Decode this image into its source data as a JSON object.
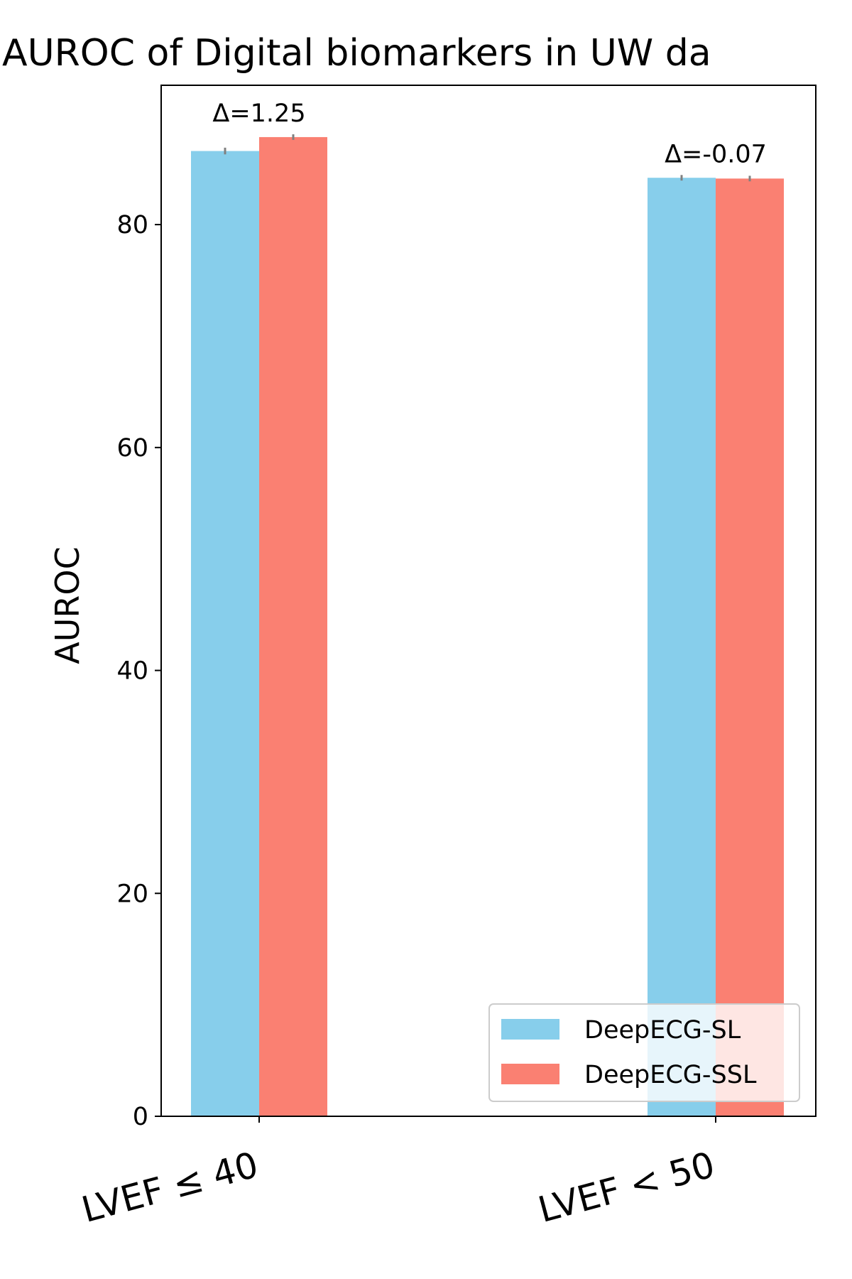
{
  "chart_data": {
    "type": "bar",
    "title": "AUROC of Digital biomarkers in UW da",
    "xlabel": "",
    "ylabel": "AUROC",
    "categories": [
      "LVEF ≤ 40",
      "LVEF < 50"
    ],
    "series": [
      {
        "name": "DeepECG-SL",
        "color": "#87CEEB",
        "values": [
          86.6,
          84.2
        ],
        "errors": [
          0.3,
          0.25
        ]
      },
      {
        "name": "DeepECG-SSL",
        "color": "#FA8072",
        "values": [
          87.85,
          84.13
        ],
        "errors": [
          0.25,
          0.25
        ]
      }
    ],
    "annotations": [
      "Δ=1.25",
      "Δ=-0.07"
    ],
    "ylim": [
      0,
      92.5
    ],
    "yticks": [
      0,
      20,
      40,
      60,
      80
    ],
    "grid": false,
    "legend_position": "lower-right",
    "errorbar_color": "#808080"
  }
}
